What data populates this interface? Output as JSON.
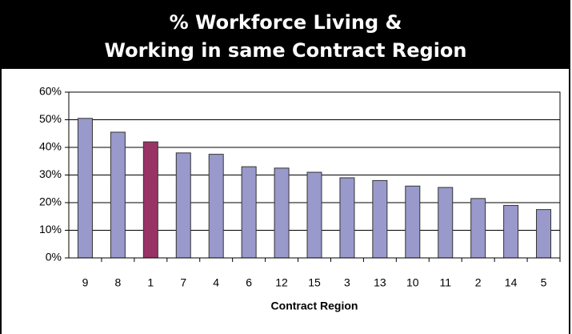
{
  "chart_data": {
    "type": "bar",
    "title": [
      "% Workforce Living &",
      "Working in same Contract Region"
    ],
    "x_label": "Contract Region",
    "categories": [
      "9",
      "8",
      "1",
      "7",
      "4",
      "6",
      "12",
      "15",
      "3",
      "13",
      "10",
      "11",
      "2",
      "14",
      "5"
    ],
    "values": [
      50.5,
      45.5,
      42,
      38,
      37.5,
      33,
      32.5,
      31,
      29,
      28,
      26,
      25.5,
      21.5,
      19,
      17.5
    ],
    "colors": [
      "#9999cc",
      "#9999cc",
      "#993366",
      "#9999cc",
      "#9999cc",
      "#9999cc",
      "#9999cc",
      "#9999cc",
      "#9999cc",
      "#9999cc",
      "#9999cc",
      "#9999cc",
      "#9999cc",
      "#9999cc",
      "#9999cc"
    ],
    "ylim": [
      0,
      60
    ],
    "yticks": [
      {
        "value": 0,
        "label": "0%"
      },
      {
        "value": 10,
        "label": "10%"
      },
      {
        "value": 20,
        "label": "20%"
      },
      {
        "value": 30,
        "label": "30%"
      },
      {
        "value": 40,
        "label": "40%"
      },
      {
        "value": 50,
        "label": "50%"
      },
      {
        "value": 60,
        "label": "60%"
      }
    ],
    "grid": true
  }
}
